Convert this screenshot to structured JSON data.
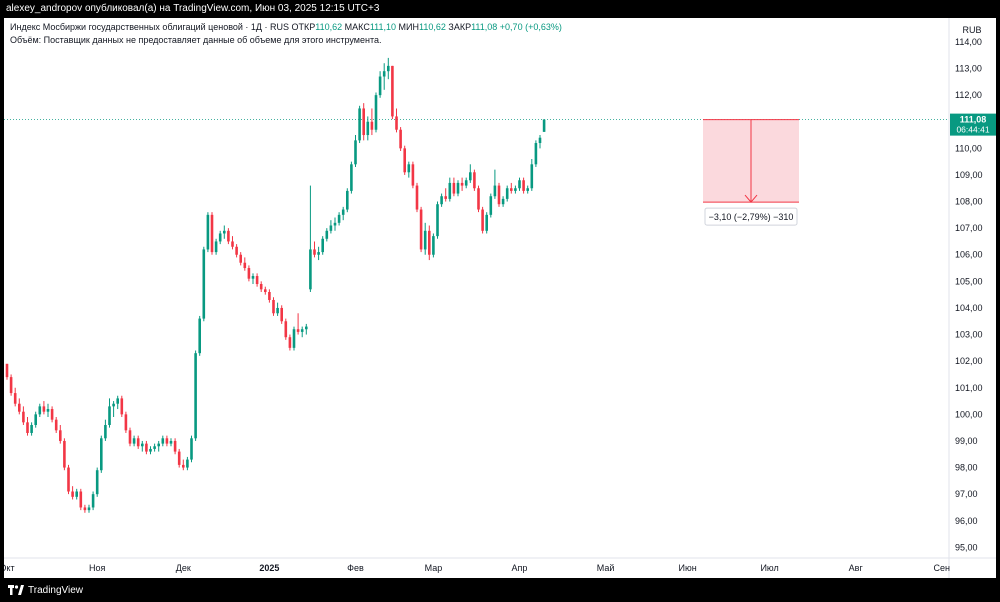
{
  "header": {
    "publish_info": "alexey_andropov опубликовал(а) на TradingView.com, Июн 03, 2025 12:15 UTC+3"
  },
  "legend": {
    "symbol": "Индекс Мосбиржи государственных облигаций ценовой · 1Д · RUS",
    "open_label": "ОТКР",
    "open": "110,62",
    "high_label": "МАКС",
    "high": "111,10",
    "low_label": "МИН",
    "low": "110,62",
    "close_label": "ЗАКР",
    "close": "111,08",
    "change": "+0,70 (+0,63%)",
    "volume_note": "Объём: Поставщик данных не предоставляет данные об объеме для этого инструмента."
  },
  "footer": {
    "brand": "TradingView"
  },
  "colors": {
    "up": "#089981",
    "down": "#f23645",
    "last_price_bg": "#089981",
    "measure_fill": "#fbd9dd",
    "measure_line": "#f23645"
  },
  "chart_data": {
    "type": "candlestick",
    "currency": "RUB",
    "ylim": [
      94.6,
      114.9
    ],
    "yticks": [
      95,
      96,
      97,
      98,
      99,
      100,
      101,
      102,
      103,
      104,
      105,
      106,
      107,
      108,
      109,
      110,
      111,
      112,
      113,
      114
    ],
    "ytick_labels": [
      "95,00",
      "96,00",
      "97,00",
      "98,00",
      "99,00",
      "100,00",
      "101,00",
      "102,00",
      "103,00",
      "104,00",
      "105,00",
      "106,00",
      "107,00",
      "108,00",
      "109,00",
      "110,00",
      "111,00",
      "112,00",
      "113,00",
      "114,00"
    ],
    "xticks": [
      {
        "label": "Окт",
        "idx": 0
      },
      {
        "label": "Ноя",
        "idx": 22
      },
      {
        "label": "Дек",
        "idx": 43
      },
      {
        "label": "2025",
        "idx": 64
      },
      {
        "label": "Фев",
        "idx": 85
      },
      {
        "label": "Мар",
        "idx": 104
      },
      {
        "label": "Апр",
        "idx": 125
      },
      {
        "label": "Май",
        "idx": 146
      },
      {
        "label": "Июн",
        "idx": 166
      },
      {
        "label": "Июл",
        "idx": 186
      },
      {
        "label": "Авг",
        "idx": 207
      },
      {
        "label": "Сен",
        "idx": 228
      }
    ],
    "candles": [
      [
        101.9,
        101.9,
        101.3,
        101.4
      ],
      [
        101.4,
        101.5,
        100.7,
        100.8
      ],
      [
        100.8,
        101.0,
        100.3,
        100.4
      ],
      [
        100.4,
        100.6,
        100.0,
        100.1
      ],
      [
        100.1,
        100.3,
        99.6,
        99.7
      ],
      [
        99.7,
        99.9,
        99.2,
        99.3
      ],
      [
        99.3,
        99.7,
        99.2,
        99.6
      ],
      [
        99.6,
        100.1,
        99.5,
        100.0
      ],
      [
        100.0,
        100.4,
        99.9,
        100.3
      ],
      [
        100.3,
        100.5,
        100.0,
        100.1
      ],
      [
        100.1,
        100.4,
        99.9,
        100.2
      ],
      [
        100.2,
        100.3,
        99.7,
        99.8
      ],
      [
        99.8,
        99.9,
        99.3,
        99.4
      ],
      [
        99.4,
        99.6,
        98.9,
        99.0
      ],
      [
        99.0,
        99.1,
        97.9,
        98.0
      ],
      [
        98.0,
        98.1,
        97.0,
        97.1
      ],
      [
        97.1,
        97.3,
        96.8,
        96.9
      ],
      [
        96.9,
        97.2,
        96.8,
        97.1
      ],
      [
        97.1,
        97.2,
        96.4,
        96.5
      ],
      [
        96.5,
        96.6,
        96.3,
        96.4
      ],
      [
        96.4,
        96.6,
        96.3,
        96.5
      ],
      [
        96.5,
        97.1,
        96.4,
        97.0
      ],
      [
        97.0,
        98.0,
        96.9,
        97.9
      ],
      [
        97.9,
        99.2,
        97.8,
        99.1
      ],
      [
        99.1,
        99.8,
        99.0,
        99.6
      ],
      [
        99.6,
        100.6,
        99.5,
        100.3
      ],
      [
        100.3,
        100.5,
        99.9,
        100.4
      ],
      [
        100.4,
        100.7,
        100.2,
        100.6
      ],
      [
        100.6,
        100.7,
        99.9,
        100.0
      ],
      [
        100.0,
        100.1,
        99.3,
        99.4
      ],
      [
        99.4,
        99.5,
        98.8,
        98.9
      ],
      [
        98.9,
        99.2,
        98.8,
        99.1
      ],
      [
        99.1,
        99.2,
        98.7,
        98.8
      ],
      [
        98.8,
        99.0,
        98.6,
        98.9
      ],
      [
        98.9,
        99.0,
        98.5,
        98.6
      ],
      [
        98.6,
        98.8,
        98.5,
        98.7
      ],
      [
        98.7,
        98.9,
        98.6,
        98.8
      ],
      [
        98.8,
        99.0,
        98.6,
        98.9
      ],
      [
        98.9,
        99.2,
        98.8,
        99.1
      ],
      [
        99.1,
        99.2,
        98.8,
        98.9
      ],
      [
        98.9,
        99.1,
        98.8,
        99.0
      ],
      [
        99.0,
        99.1,
        98.5,
        98.6
      ],
      [
        98.6,
        98.7,
        98.0,
        98.1
      ],
      [
        98.1,
        98.3,
        97.9,
        98.0
      ],
      [
        98.0,
        98.4,
        97.9,
        98.3
      ],
      [
        98.3,
        99.2,
        98.2,
        99.1
      ],
      [
        99.1,
        102.4,
        99.0,
        102.3
      ],
      [
        102.3,
        103.7,
        102.2,
        103.6
      ],
      [
        103.6,
        106.3,
        103.5,
        106.2
      ],
      [
        106.2,
        107.6,
        106.1,
        107.5
      ],
      [
        107.5,
        107.6,
        106.0,
        106.1
      ],
      [
        106.1,
        106.6,
        106.0,
        106.5
      ],
      [
        106.5,
        106.9,
        106.4,
        106.8
      ],
      [
        106.8,
        107.1,
        106.6,
        106.9
      ],
      [
        106.9,
        107.0,
        106.4,
        106.5
      ],
      [
        106.5,
        106.7,
        106.2,
        106.3
      ],
      [
        106.3,
        106.4,
        105.9,
        106.0
      ],
      [
        106.0,
        106.1,
        105.6,
        105.7
      ],
      [
        105.7,
        105.9,
        105.4,
        105.5
      ],
      [
        105.5,
        105.6,
        105.0,
        105.1
      ],
      [
        105.1,
        105.3,
        104.9,
        105.2
      ],
      [
        105.2,
        105.3,
        104.8,
        104.9
      ],
      [
        104.9,
        105.0,
        104.6,
        104.7
      ],
      [
        104.7,
        104.8,
        104.5,
        104.6
      ],
      [
        104.6,
        104.7,
        104.2,
        104.3
      ],
      [
        104.3,
        104.4,
        103.7,
        103.8
      ],
      [
        103.8,
        104.2,
        103.7,
        104.0
      ],
      [
        104.0,
        104.1,
        103.4,
        103.5
      ],
      [
        103.5,
        103.6,
        102.8,
        102.9
      ],
      [
        102.9,
        103.0,
        102.4,
        102.5
      ],
      [
        102.5,
        103.3,
        102.4,
        103.2
      ],
      [
        103.2,
        103.8,
        103.0,
        103.1
      ],
      [
        103.1,
        103.3,
        102.9,
        103.2
      ],
      [
        103.2,
        103.4,
        103.0,
        103.3
      ],
      [
        104.7,
        108.6,
        104.6,
        106.2
      ],
      [
        106.2,
        106.5,
        105.9,
        106.0
      ],
      [
        106.0,
        106.3,
        105.8,
        106.1
      ],
      [
        106.1,
        106.7,
        106.0,
        106.6
      ],
      [
        106.6,
        107.0,
        106.5,
        106.9
      ],
      [
        106.9,
        107.3,
        106.8,
        107.1
      ],
      [
        107.1,
        107.4,
        106.9,
        107.2
      ],
      [
        107.2,
        107.6,
        107.1,
        107.5
      ],
      [
        107.5,
        107.8,
        107.3,
        107.7
      ],
      [
        107.7,
        108.5,
        107.6,
        108.4
      ],
      [
        108.4,
        109.5,
        108.3,
        109.4
      ],
      [
        109.4,
        110.5,
        109.3,
        110.3
      ],
      [
        110.3,
        111.6,
        110.2,
        111.5
      ],
      [
        111.5,
        111.7,
        110.3,
        110.5
      ],
      [
        110.5,
        111.2,
        110.3,
        111.0
      ],
      [
        111.0,
        111.5,
        110.5,
        110.7
      ],
      [
        110.7,
        112.1,
        110.6,
        112.0
      ],
      [
        112.0,
        112.9,
        111.9,
        112.7
      ],
      [
        112.7,
        113.2,
        112.2,
        112.9
      ],
      [
        112.9,
        113.4,
        112.6,
        113.1
      ],
      [
        113.1,
        113.1,
        111.1,
        111.2
      ],
      [
        111.2,
        111.5,
        110.6,
        110.7
      ],
      [
        110.7,
        110.8,
        109.9,
        110.0
      ],
      [
        110.0,
        110.1,
        109.0,
        109.1
      ],
      [
        109.1,
        109.5,
        108.9,
        109.4
      ],
      [
        109.4,
        109.5,
        108.5,
        108.6
      ],
      [
        108.6,
        108.7,
        107.6,
        107.7
      ],
      [
        107.7,
        107.8,
        106.1,
        106.2
      ],
      [
        106.2,
        107.2,
        106.0,
        106.9
      ],
      [
        106.9,
        107.1,
        105.8,
        106.0
      ],
      [
        106.0,
        106.8,
        105.9,
        106.7
      ],
      [
        106.7,
        108.0,
        106.6,
        107.9
      ],
      [
        107.9,
        108.3,
        107.8,
        108.2
      ],
      [
        108.2,
        108.5,
        108.0,
        108.1
      ],
      [
        108.1,
        108.9,
        108.0,
        108.7
      ],
      [
        108.7,
        108.9,
        108.2,
        108.3
      ],
      [
        108.3,
        108.8,
        108.2,
        108.7
      ],
      [
        108.7,
        108.9,
        108.4,
        108.6
      ],
      [
        108.6,
        108.9,
        108.5,
        108.8
      ],
      [
        108.8,
        109.4,
        108.7,
        109.1
      ],
      [
        109.1,
        109.2,
        108.4,
        108.5
      ],
      [
        108.5,
        108.6,
        107.6,
        107.7
      ],
      [
        107.7,
        107.8,
        106.8,
        106.9
      ],
      [
        106.9,
        107.6,
        106.8,
        107.5
      ],
      [
        107.5,
        108.3,
        107.4,
        108.2
      ],
      [
        108.2,
        109.2,
        108.1,
        108.6
      ],
      [
        108.6,
        108.7,
        107.8,
        107.9
      ],
      [
        107.9,
        108.2,
        107.8,
        108.1
      ],
      [
        108.1,
        108.6,
        108.0,
        108.5
      ],
      [
        108.5,
        108.7,
        108.3,
        108.4
      ],
      [
        108.4,
        108.6,
        108.3,
        108.5
      ],
      [
        108.5,
        108.9,
        108.4,
        108.8
      ],
      [
        108.8,
        108.9,
        108.3,
        108.4
      ],
      [
        108.4,
        108.6,
        108.3,
        108.5
      ],
      [
        108.5,
        109.6,
        108.4,
        109.4
      ],
      [
        109.4,
        110.3,
        109.3,
        110.2
      ],
      [
        110.2,
        110.5,
        110.0,
        110.4
      ],
      [
        110.62,
        111.1,
        110.62,
        111.08
      ]
    ],
    "last_price": {
      "value_label": "111,08",
      "countdown": "06:44:41",
      "value": 111.08
    },
    "measure": {
      "from": 111.08,
      "to": 107.98,
      "label": "−3,10 (−2,79%) −310"
    }
  }
}
